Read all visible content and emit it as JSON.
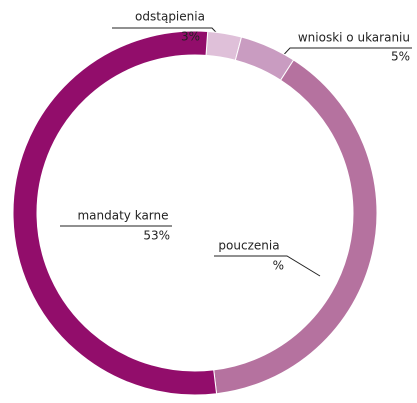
{
  "chart_data": {
    "type": "donut",
    "categories": [
      "odstąpienia",
      "wnioski o ukaraniu",
      "pouczenia",
      "mandaty karne"
    ],
    "values": [
      3,
      5,
      39,
      53
    ],
    "value_labels": [
      "3%",
      "5%",
      "%",
      "53%"
    ],
    "colors": [
      "#dfc0d9",
      "#c99cc1",
      "#b5729f",
      "#920d6b"
    ]
  }
}
